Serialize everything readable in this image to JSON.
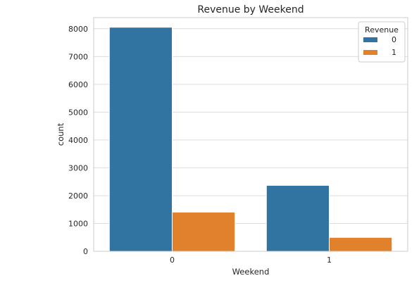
{
  "chart_data": {
    "type": "bar",
    "title": "Revenue by Weekend",
    "xlabel": "Weekend",
    "ylabel": "count",
    "categories": [
      "0",
      "1"
    ],
    "series": [
      {
        "name": "0",
        "color": "#3274a1",
        "values": [
          8053,
          2369
        ]
      },
      {
        "name": "1",
        "color": "#e1812c",
        "values": [
          1409,
          499
        ]
      }
    ],
    "ylim": [
      0,
      8400
    ],
    "yticks": [
      0,
      1000,
      2000,
      3000,
      4000,
      5000,
      6000,
      7000,
      8000
    ],
    "grid": true,
    "legend": {
      "title": "Revenue",
      "placement": "top-right"
    }
  }
}
